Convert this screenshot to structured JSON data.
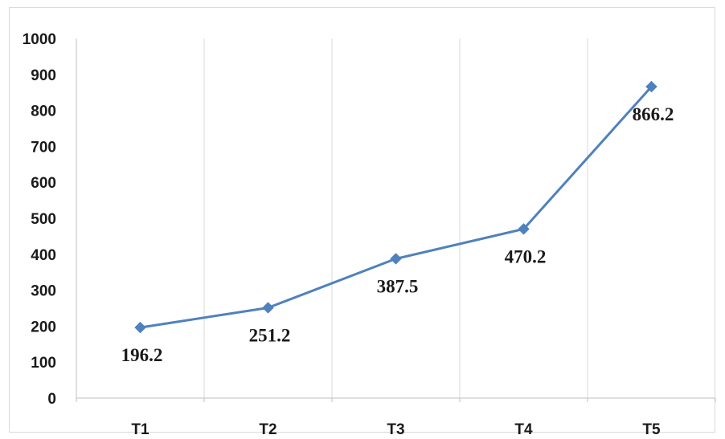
{
  "chart_data": {
    "type": "line",
    "title": "",
    "xlabel": "",
    "ylabel": "",
    "categories": [
      "T1",
      "T2",
      "T3",
      "T4",
      "T5"
    ],
    "series": [
      {
        "values": [
          196.2,
          251.2,
          387.5,
          470.2,
          866.2
        ],
        "data_labels": [
          "196.2",
          "251.2",
          "387.5",
          "470.2",
          "866.2"
        ],
        "color": "#4f81bd",
        "marker": "diamond"
      }
    ],
    "y_ticks": [
      "0",
      "100",
      "200",
      "300",
      "400",
      "500",
      "600",
      "700",
      "800",
      "900",
      "1000"
    ],
    "ylim": [
      0,
      1000
    ],
    "grid": "vertical",
    "legend": "none"
  }
}
